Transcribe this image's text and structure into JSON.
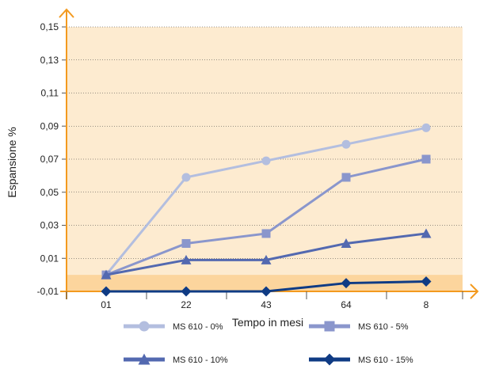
{
  "chart_data": {
    "type": "line",
    "title": "",
    "xlabel": "Tempo in mesi",
    "ylabel": "Espansione %",
    "categories": [
      "01",
      "22",
      "43",
      "64",
      "8"
    ],
    "y_ticks": [
      -0.01,
      0.01,
      0.03,
      0.05,
      0.07,
      0.09,
      0.11,
      0.13,
      0.15
    ],
    "y_tick_labels": [
      "-0,01",
      "0,01",
      "0,03",
      "0,05",
      "0,07",
      "0,09",
      "0,11",
      "0,13",
      "0,15"
    ],
    "ylim": [
      -0.01,
      0.15
    ],
    "shaded_band": [
      -0.01,
      0.0
    ],
    "grid": true,
    "legend_position": "bottom",
    "series": [
      {
        "name": "MS 610 - 0%",
        "values": [
          0.0,
          0.059,
          0.069,
          0.079,
          0.089
        ],
        "color": "#b3bedf",
        "marker": "circle"
      },
      {
        "name": "MS 610 - 5%",
        "values": [
          0.0,
          0.019,
          0.025,
          0.059,
          0.07
        ],
        "color": "#8a96cc",
        "marker": "square"
      },
      {
        "name": "MS 610 - 10%",
        "values": [
          0.0,
          0.009,
          0.009,
          0.019,
          0.025
        ],
        "color": "#5369b0",
        "marker": "triangle"
      },
      {
        "name": "MS 610 - 15%",
        "values": [
          -0.01,
          -0.01,
          -0.01,
          -0.005,
          -0.004
        ],
        "color": "#0f3b84",
        "marker": "diamond"
      }
    ],
    "colors": {
      "plot_background": "#fdebd0",
      "shaded_band": "#fcd59d",
      "axis": "#f39a1f",
      "gridline": "#333333"
    }
  }
}
